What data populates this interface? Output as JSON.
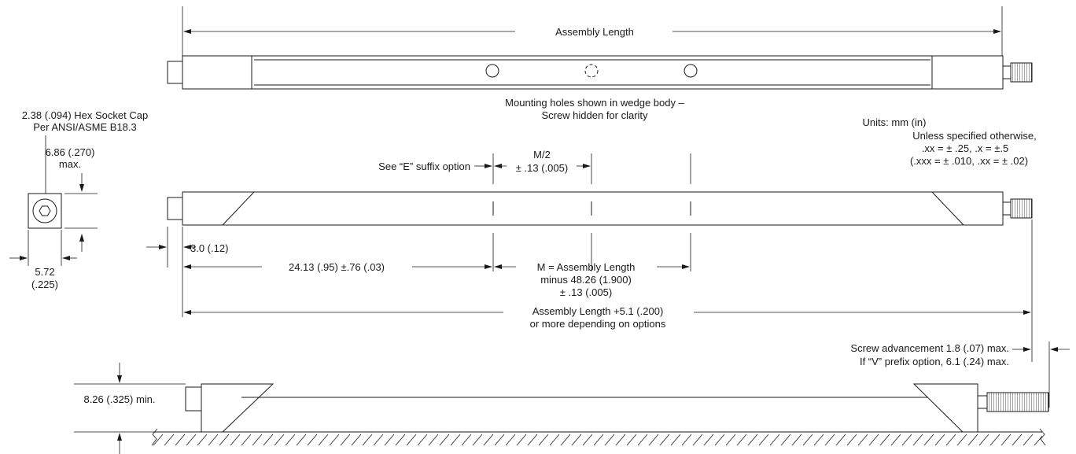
{
  "top_view": {
    "assembly_length": "Assembly Length",
    "note_line1": "Mounting holes shown in wedge body –",
    "note_line2": "Screw hidden for clarity"
  },
  "hex_socket": {
    "line1": "2.38 (.094) Hex Socket Cap",
    "line2": "Per ANSI/ASME B18.3",
    "height_line1": "6.86 (.270)",
    "height_line2": "max.",
    "width_line1": "5.72",
    "width_line2": "(.225)"
  },
  "units": {
    "line1": "Units: mm (in)",
    "line2": "Unless specified otherwise,",
    "line3": ".xx = ± .25, .x = ±.5",
    "line4": "(.xxx = ± .010, .xx = ± .02)"
  },
  "middle_view": {
    "e_suffix": "See “E” suffix option",
    "half_m_line1": "M/2",
    "half_m_line2": "± .13 (.005)",
    "offset": "3.0 (.12)",
    "first_hole": "24.13 (.95) ±.76 (.03)",
    "m_line1": "M = Assembly Length",
    "m_line2": "minus 48.26 (1.900)",
    "m_line3": "± .13 (.005)",
    "overall_line1": "Assembly Length +5.1 (.200)",
    "overall_line2": "or more depending on options"
  },
  "side_view": {
    "screw_line1": "Screw advancement 1.8 (.07) max.",
    "screw_line2": "If “V” prefix option, 6.1 (.24) max.",
    "height": "8.26 (.325) min."
  }
}
